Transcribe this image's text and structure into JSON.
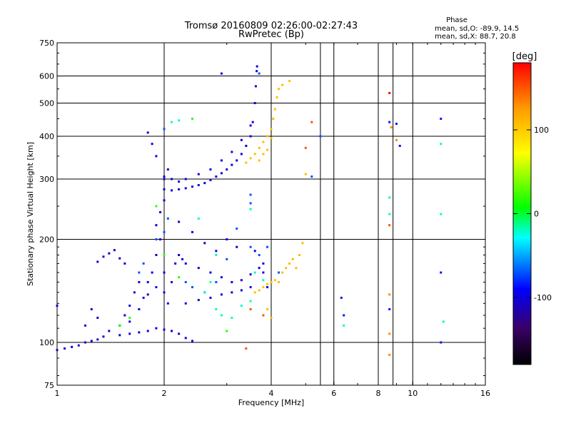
{
  "chart_data": {
    "type": "scatter",
    "title": "Tromsø 20160809 02:26:00-02:27:43",
    "subtitle": "RwPretec (Bp)",
    "xlabel": "Frequency [MHz]",
    "ylabel": "Stationary phase Virtual Height [km]",
    "x_scale": "log",
    "y_scale": "log",
    "xlim": [
      1,
      16
    ],
    "ylim": [
      75,
      750
    ],
    "x_ticks": [
      1,
      2,
      4,
      6,
      8,
      10,
      16
    ],
    "x_tick_labels": [
      "1",
      "2",
      "4",
      "6",
      "8",
      "10",
      "16"
    ],
    "y_ticks": [
      75,
      100,
      200,
      300,
      400,
      500,
      600,
      750
    ],
    "y_tick_labels": [
      "75",
      "100",
      "200",
      "300",
      "400",
      "500",
      "600",
      "750"
    ],
    "grid": true,
    "phase_info": {
      "heading": "Phase",
      "o_line": "mean, sd,O: -89.9, 14.5",
      "x_line": "mean, sd,X: 88.7, 20.8"
    },
    "colorbar": {
      "label": "[deg]",
      "range": [
        -180,
        180
      ],
      "ticks": [
        -100,
        0,
        100
      ],
      "tick_labels": [
        "-100",
        "0",
        "100"
      ],
      "colors": [
        "#000000",
        "#3a0066",
        "#0000ff",
        "#00ffff",
        "#00ff00",
        "#ffff00",
        "#ff9900",
        "#ff0000"
      ]
    },
    "series": [
      {
        "phase": -100,
        "points": [
          [
            1.0,
            95
          ],
          [
            1.05,
            96
          ],
          [
            1.1,
            97
          ],
          [
            1.15,
            98
          ],
          [
            1.2,
            100
          ],
          [
            1.25,
            101
          ],
          [
            1.3,
            102
          ],
          [
            1.35,
            104
          ],
          [
            1.0,
            128
          ],
          [
            1.2,
            112
          ],
          [
            1.25,
            125
          ],
          [
            1.3,
            118
          ],
          [
            1.3,
            172
          ],
          [
            1.35,
            178
          ],
          [
            1.4,
            182
          ],
          [
            1.45,
            186
          ],
          [
            1.5,
            176
          ],
          [
            1.55,
            170
          ],
          [
            1.4,
            108
          ],
          [
            1.5,
            112
          ],
          [
            1.55,
            120
          ],
          [
            1.6,
            128
          ],
          [
            1.6,
            115
          ],
          [
            1.65,
            140
          ],
          [
            1.7,
            150
          ],
          [
            1.75,
            135
          ],
          [
            1.5,
            105
          ],
          [
            1.6,
            106
          ],
          [
            1.7,
            107
          ],
          [
            1.8,
            108
          ],
          [
            1.9,
            110
          ],
          [
            2.0,
            109
          ],
          [
            2.1,
            108
          ],
          [
            2.2,
            106
          ],
          [
            2.3,
            103
          ],
          [
            2.4,
            101
          ],
          [
            1.8,
            150
          ],
          [
            1.85,
            160
          ],
          [
            1.9,
            180
          ],
          [
            1.95,
            200
          ],
          [
            1.9,
            220
          ],
          [
            1.95,
            240
          ],
          [
            2.0,
            260
          ],
          [
            2.0,
            280
          ],
          [
            2.0,
            300
          ],
          [
            2.05,
            320
          ],
          [
            1.9,
            350
          ],
          [
            1.85,
            380
          ],
          [
            1.8,
            410
          ],
          [
            1.7,
            125
          ],
          [
            1.8,
            138
          ],
          [
            1.9,
            145
          ],
          [
            2.0,
            160
          ],
          [
            2.0,
            140
          ],
          [
            2.05,
            130
          ],
          [
            2.1,
            150
          ],
          [
            2.15,
            170
          ],
          [
            2.2,
            180
          ],
          [
            2.25,
            175
          ],
          [
            2.1,
            278
          ],
          [
            2.2,
            280
          ],
          [
            2.3,
            282
          ],
          [
            2.4,
            285
          ],
          [
            2.5,
            288
          ],
          [
            2.6,
            292
          ],
          [
            2.7,
            298
          ],
          [
            2.8,
            305
          ],
          [
            2.9,
            312
          ],
          [
            3.0,
            320
          ],
          [
            3.1,
            330
          ],
          [
            3.2,
            340
          ],
          [
            3.3,
            355
          ],
          [
            3.4,
            375
          ],
          [
            3.5,
            400
          ],
          [
            3.55,
            440
          ],
          [
            3.6,
            500
          ],
          [
            3.62,
            560
          ],
          [
            3.64,
            620
          ],
          [
            3.65,
            640
          ],
          [
            2.0,
            305
          ],
          [
            2.1,
            300
          ],
          [
            2.2,
            295
          ],
          [
            2.3,
            300
          ],
          [
            2.5,
            310
          ],
          [
            2.7,
            320
          ],
          [
            2.9,
            340
          ],
          [
            3.1,
            360
          ],
          [
            3.3,
            390
          ],
          [
            3.5,
            430
          ],
          [
            2.3,
            170
          ],
          [
            2.5,
            165
          ],
          [
            2.7,
            160
          ],
          [
            2.9,
            155
          ],
          [
            3.1,
            150
          ],
          [
            3.3,
            152
          ],
          [
            3.5,
            158
          ],
          [
            3.7,
            165
          ],
          [
            3.8,
            170
          ],
          [
            2.3,
            130
          ],
          [
            2.5,
            133
          ],
          [
            2.7,
            135
          ],
          [
            2.9,
            138
          ],
          [
            3.1,
            140
          ],
          [
            3.3,
            142
          ],
          [
            3.5,
            145
          ],
          [
            2.2,
            225
          ],
          [
            2.4,
            210
          ],
          [
            2.6,
            195
          ],
          [
            2.8,
            185
          ],
          [
            3.0,
            200
          ],
          [
            3.2,
            190
          ],
          [
            3.6,
            185
          ],
          [
            3.8,
            160
          ],
          [
            3.9,
            145
          ],
          [
            2.9,
            610
          ]
        ]
      },
      {
        "phase": -70,
        "points": [
          [
            1.7,
            160
          ],
          [
            1.75,
            170
          ],
          [
            1.9,
            200
          ],
          [
            2.0,
            210
          ],
          [
            2.05,
            230
          ],
          [
            2.3,
            150
          ],
          [
            2.4,
            145
          ],
          [
            2.6,
            140
          ],
          [
            2.8,
            150
          ],
          [
            3.0,
            175
          ],
          [
            3.2,
            215
          ],
          [
            3.5,
            190
          ],
          [
            3.7,
            180
          ],
          [
            3.9,
            190
          ],
          [
            4.2,
            160
          ],
          [
            3.7,
            610
          ],
          [
            2.0,
            420
          ],
          [
            5.5,
            400
          ],
          [
            5.2,
            305
          ],
          [
            3.5,
            270
          ],
          [
            3.5,
            255
          ]
        ]
      },
      {
        "phase": -20,
        "points": [
          [
            3.3,
            128
          ],
          [
            3.5,
            132
          ],
          [
            2.9,
            120
          ],
          [
            3.1,
            118
          ],
          [
            3.6,
            160
          ],
          [
            3.8,
            152
          ],
          [
            2.2,
            445
          ],
          [
            2.1,
            440
          ],
          [
            2.6,
            140
          ],
          [
            2.8,
            125
          ],
          [
            2.7,
            150
          ],
          [
            2.5,
            230
          ],
          [
            2.8,
            180
          ]
        ]
      },
      {
        "phase": 20,
        "points": [
          [
            1.6,
            118
          ],
          [
            1.5,
            112
          ],
          [
            2.0,
            180
          ],
          [
            1.9,
            250
          ],
          [
            2.4,
            450
          ],
          [
            3.0,
            108
          ],
          [
            2.2,
            155
          ]
        ]
      },
      {
        "phase": 105,
        "points": [
          [
            3.4,
            335
          ],
          [
            3.5,
            345
          ],
          [
            3.6,
            355
          ],
          [
            3.7,
            370
          ],
          [
            3.8,
            385
          ],
          [
            3.9,
            400
          ],
          [
            4.0,
            420
          ],
          [
            4.05,
            450
          ],
          [
            4.1,
            480
          ],
          [
            4.15,
            520
          ],
          [
            4.2,
            550
          ],
          [
            4.3,
            565
          ],
          [
            4.5,
            580
          ],
          [
            3.7,
            340
          ],
          [
            3.8,
            355
          ],
          [
            3.9,
            365
          ],
          [
            4.0,
            395
          ],
          [
            3.6,
            140
          ],
          [
            3.7,
            142
          ],
          [
            3.8,
            145
          ],
          [
            3.9,
            148
          ],
          [
            4.0,
            150
          ],
          [
            4.1,
            152
          ],
          [
            4.2,
            150
          ],
          [
            4.3,
            160
          ],
          [
            4.5,
            170
          ],
          [
            4.6,
            175
          ],
          [
            4.8,
            180
          ],
          [
            4.7,
            165
          ],
          [
            4.4,
            165
          ],
          [
            3.9,
            125
          ],
          [
            4.0,
            118
          ],
          [
            4.9,
            195
          ],
          [
            5.0,
            310
          ]
        ]
      },
      {
        "phase": 150,
        "points": [
          [
            5.0,
            370
          ],
          [
            5.2,
            440
          ],
          [
            3.4,
            96
          ],
          [
            3.8,
            120
          ],
          [
            3.5,
            125
          ],
          [
            8.6,
            220
          ]
        ]
      },
      {
        "phase": 180,
        "points": [
          [
            8.6,
            535
          ]
        ]
      },
      {
        "phase": -85,
        "points": [
          [
            6.3,
            135
          ],
          [
            6.4,
            120
          ],
          [
            8.6,
            125
          ],
          [
            8.6,
            440
          ],
          [
            9.0,
            435
          ],
          [
            9.2,
            375
          ],
          [
            12.0,
            450
          ],
          [
            12.0,
            160
          ],
          [
            12.0,
            100
          ]
        ]
      },
      {
        "phase": -20,
        "points": [
          [
            6.4,
            112
          ],
          [
            8.6,
            265
          ],
          [
            8.6,
            237
          ],
          [
            12.0,
            237
          ],
          [
            12.0,
            380
          ],
          [
            12.2,
            115
          ],
          [
            3.5,
            245
          ]
        ]
      },
      {
        "phase": 130,
        "points": [
          [
            8.6,
            138
          ],
          [
            8.6,
            106
          ],
          [
            8.6,
            92
          ],
          [
            9.0,
            390
          ],
          [
            8.7,
            425
          ]
        ]
      }
    ]
  }
}
